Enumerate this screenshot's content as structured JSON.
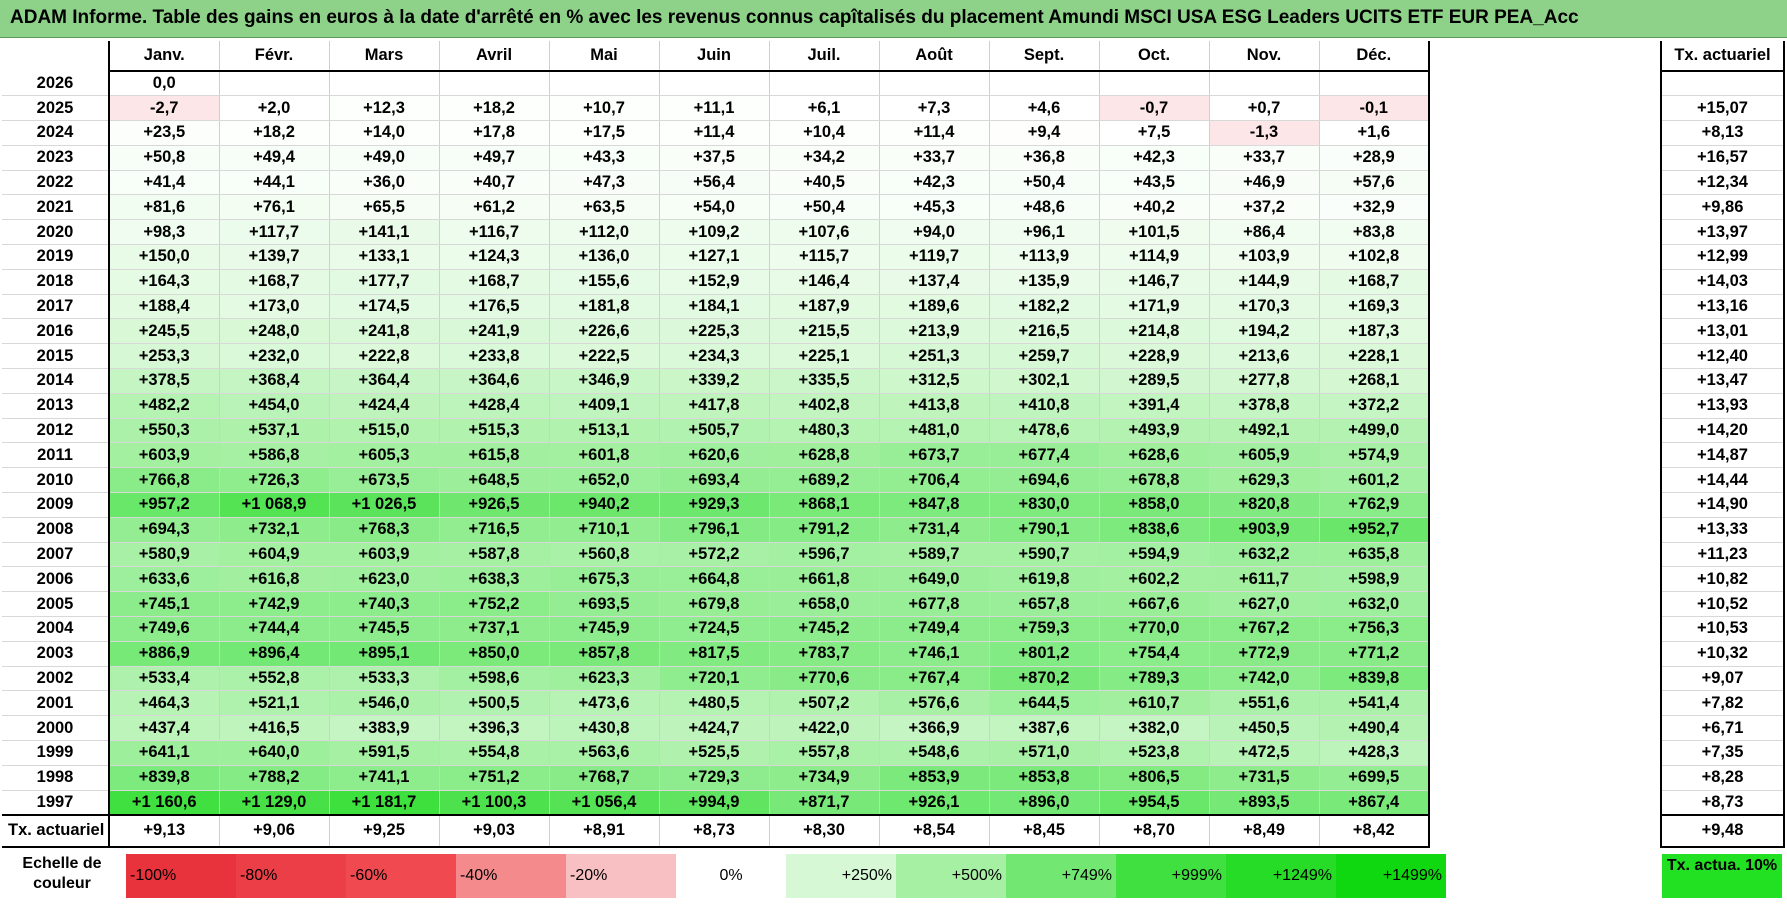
{
  "title": "ADAM Informe. Table des gains en euros à la date d'arrêté en % avec les revenus connus capîtalisés du placement Amundi MSCI USA ESG Leaders UCITS ETF EUR PEA_Acc",
  "months": [
    "Janv.",
    "Févr.",
    "Mars",
    "Avril",
    "Mai",
    "Juin",
    "Juil.",
    "Août",
    "Sept.",
    "Oct.",
    "Nov.",
    "Déc."
  ],
  "tx_header": "Tx. actuariel",
  "rows": [
    {
      "year": "2026",
      "values": [
        "0,0",
        "",
        "",
        "",
        "",
        "",
        "",
        "",
        "",
        "",
        "",
        ""
      ],
      "tx": ""
    },
    {
      "year": "2025",
      "values": [
        "-2,7",
        "+2,0",
        "+12,3",
        "+18,2",
        "+10,7",
        "+11,1",
        "+6,1",
        "+7,3",
        "+4,6",
        "-0,7",
        "+0,7",
        "-0,1"
      ],
      "tx": "+15,07"
    },
    {
      "year": "2024",
      "values": [
        "+23,5",
        "+18,2",
        "+14,0",
        "+17,8",
        "+17,5",
        "+11,4",
        "+10,4",
        "+11,4",
        "+9,4",
        "+7,5",
        "-1,3",
        "+1,6"
      ],
      "tx": "+8,13"
    },
    {
      "year": "2023",
      "values": [
        "+50,8",
        "+49,4",
        "+49,0",
        "+49,7",
        "+43,3",
        "+37,5",
        "+34,2",
        "+33,7",
        "+36,8",
        "+42,3",
        "+33,7",
        "+28,9"
      ],
      "tx": "+16,57"
    },
    {
      "year": "2022",
      "values": [
        "+41,4",
        "+44,1",
        "+36,0",
        "+40,7",
        "+47,3",
        "+56,4",
        "+40,5",
        "+42,3",
        "+50,4",
        "+43,5",
        "+46,9",
        "+57,6"
      ],
      "tx": "+12,34"
    },
    {
      "year": "2021",
      "values": [
        "+81,6",
        "+76,1",
        "+65,5",
        "+61,2",
        "+63,5",
        "+54,0",
        "+50,4",
        "+45,3",
        "+48,6",
        "+40,2",
        "+37,2",
        "+32,9"
      ],
      "tx": "+9,86"
    },
    {
      "year": "2020",
      "values": [
        "+98,3",
        "+117,7",
        "+141,1",
        "+116,7",
        "+112,0",
        "+109,2",
        "+107,6",
        "+94,0",
        "+96,1",
        "+101,5",
        "+86,4",
        "+83,8"
      ],
      "tx": "+13,97"
    },
    {
      "year": "2019",
      "values": [
        "+150,0",
        "+139,7",
        "+133,1",
        "+124,3",
        "+136,0",
        "+127,1",
        "+115,7",
        "+119,7",
        "+113,9",
        "+114,9",
        "+103,9",
        "+102,8"
      ],
      "tx": "+12,99"
    },
    {
      "year": "2018",
      "values": [
        "+164,3",
        "+168,7",
        "+177,7",
        "+168,7",
        "+155,6",
        "+152,9",
        "+146,4",
        "+137,4",
        "+135,9",
        "+146,7",
        "+144,9",
        "+168,7"
      ],
      "tx": "+14,03"
    },
    {
      "year": "2017",
      "values": [
        "+188,4",
        "+173,0",
        "+174,5",
        "+176,5",
        "+181,8",
        "+184,1",
        "+187,9",
        "+189,6",
        "+182,2",
        "+171,9",
        "+170,3",
        "+169,3"
      ],
      "tx": "+13,16"
    },
    {
      "year": "2016",
      "values": [
        "+245,5",
        "+248,0",
        "+241,8",
        "+241,9",
        "+226,6",
        "+225,3",
        "+215,5",
        "+213,9",
        "+216,5",
        "+214,8",
        "+194,2",
        "+187,3"
      ],
      "tx": "+13,01"
    },
    {
      "year": "2015",
      "values": [
        "+253,3",
        "+232,0",
        "+222,8",
        "+233,8",
        "+222,5",
        "+234,3",
        "+225,1",
        "+251,3",
        "+259,7",
        "+228,9",
        "+213,6",
        "+228,1"
      ],
      "tx": "+12,40"
    },
    {
      "year": "2014",
      "values": [
        "+378,5",
        "+368,4",
        "+364,4",
        "+364,6",
        "+346,9",
        "+339,2",
        "+335,5",
        "+312,5",
        "+302,1",
        "+289,5",
        "+277,8",
        "+268,1"
      ],
      "tx": "+13,47"
    },
    {
      "year": "2013",
      "values": [
        "+482,2",
        "+454,0",
        "+424,4",
        "+428,4",
        "+409,1",
        "+417,8",
        "+402,8",
        "+413,8",
        "+410,8",
        "+391,4",
        "+378,8",
        "+372,2"
      ],
      "tx": "+13,93"
    },
    {
      "year": "2012",
      "values": [
        "+550,3",
        "+537,1",
        "+515,0",
        "+515,3",
        "+513,1",
        "+505,7",
        "+480,3",
        "+481,0",
        "+478,6",
        "+493,9",
        "+492,1",
        "+499,0"
      ],
      "tx": "+14,20"
    },
    {
      "year": "2011",
      "values": [
        "+603,9",
        "+586,8",
        "+605,3",
        "+615,8",
        "+601,8",
        "+620,6",
        "+628,8",
        "+673,7",
        "+677,4",
        "+628,6",
        "+605,9",
        "+574,9"
      ],
      "tx": "+14,87"
    },
    {
      "year": "2010",
      "values": [
        "+766,8",
        "+726,3",
        "+673,5",
        "+648,5",
        "+652,0",
        "+693,4",
        "+689,2",
        "+706,4",
        "+694,6",
        "+678,8",
        "+629,3",
        "+601,2"
      ],
      "tx": "+14,44"
    },
    {
      "year": "2009",
      "values": [
        "+957,2",
        "+1 068,9",
        "+1 026,5",
        "+926,5",
        "+940,2",
        "+929,3",
        "+868,1",
        "+847,8",
        "+830,0",
        "+858,0",
        "+820,8",
        "+762,9"
      ],
      "tx": "+14,90"
    },
    {
      "year": "2008",
      "values": [
        "+694,3",
        "+732,1",
        "+768,3",
        "+716,5",
        "+710,1",
        "+796,1",
        "+791,2",
        "+731,4",
        "+790,1",
        "+838,6",
        "+903,9",
        "+952,7"
      ],
      "tx": "+13,33"
    },
    {
      "year": "2007",
      "values": [
        "+580,9",
        "+604,9",
        "+603,9",
        "+587,8",
        "+560,8",
        "+572,2",
        "+596,7",
        "+589,7",
        "+590,7",
        "+594,9",
        "+632,2",
        "+635,8"
      ],
      "tx": "+11,23"
    },
    {
      "year": "2006",
      "values": [
        "+633,6",
        "+616,8",
        "+623,0",
        "+638,3",
        "+675,3",
        "+664,8",
        "+661,8",
        "+649,0",
        "+619,8",
        "+602,2",
        "+611,7",
        "+598,9"
      ],
      "tx": "+10,82"
    },
    {
      "year": "2005",
      "values": [
        "+745,1",
        "+742,9",
        "+740,3",
        "+752,2",
        "+693,5",
        "+679,8",
        "+658,0",
        "+677,8",
        "+657,8",
        "+667,6",
        "+627,0",
        "+632,0"
      ],
      "tx": "+10,52"
    },
    {
      "year": "2004",
      "values": [
        "+749,6",
        "+744,4",
        "+745,5",
        "+737,1",
        "+745,9",
        "+724,5",
        "+745,2",
        "+749,4",
        "+759,3",
        "+770,0",
        "+767,2",
        "+756,3"
      ],
      "tx": "+10,53"
    },
    {
      "year": "2003",
      "values": [
        "+886,9",
        "+896,4",
        "+895,1",
        "+850,0",
        "+857,8",
        "+817,5",
        "+783,7",
        "+746,1",
        "+801,2",
        "+754,4",
        "+772,9",
        "+771,2"
      ],
      "tx": "+10,32"
    },
    {
      "year": "2002",
      "values": [
        "+533,4",
        "+552,8",
        "+533,3",
        "+598,6",
        "+623,3",
        "+720,1",
        "+770,6",
        "+767,4",
        "+870,2",
        "+789,3",
        "+742,0",
        "+839,8"
      ],
      "tx": "+9,07"
    },
    {
      "year": "2001",
      "values": [
        "+464,3",
        "+521,1",
        "+546,0",
        "+500,5",
        "+473,6",
        "+480,5",
        "+507,2",
        "+576,6",
        "+644,5",
        "+610,7",
        "+551,6",
        "+541,4"
      ],
      "tx": "+7,82"
    },
    {
      "year": "2000",
      "values": [
        "+437,4",
        "+416,5",
        "+383,9",
        "+396,3",
        "+430,8",
        "+424,7",
        "+422,0",
        "+366,9",
        "+387,6",
        "+382,0",
        "+450,5",
        "+490,4"
      ],
      "tx": "+6,71"
    },
    {
      "year": "1999",
      "values": [
        "+641,1",
        "+640,0",
        "+591,5",
        "+554,8",
        "+563,6",
        "+525,5",
        "+557,8",
        "+548,6",
        "+571,0",
        "+523,8",
        "+472,5",
        "+428,3"
      ],
      "tx": "+7,35"
    },
    {
      "year": "1998",
      "values": [
        "+839,8",
        "+788,2",
        "+741,1",
        "+751,2",
        "+768,7",
        "+729,3",
        "+734,9",
        "+853,9",
        "+853,8",
        "+806,5",
        "+731,5",
        "+699,5"
      ],
      "tx": "+8,28"
    },
    {
      "year": "1997",
      "values": [
        "+1 160,6",
        "+1 129,0",
        "+1 181,7",
        "+1 100,3",
        "+1 056,4",
        "+994,9",
        "+871,7",
        "+926,1",
        "+896,0",
        "+954,5",
        "+893,5",
        "+867,4"
      ],
      "tx": "+8,73"
    }
  ],
  "footer": {
    "label": "Tx. actuariel",
    "values": [
      "+9,13",
      "+9,06",
      "+9,25",
      "+9,03",
      "+8,91",
      "+8,73",
      "+8,30",
      "+8,54",
      "+8,45",
      "+8,70",
      "+8,49",
      "+8,42"
    ],
    "tx": "+9,48"
  },
  "legend": {
    "label": "Echelle de couleur",
    "swatches": [
      {
        "text": "-100%",
        "color": "#e8323c",
        "align": "l"
      },
      {
        "text": "-80%",
        "color": "#ec3e46",
        "align": "l"
      },
      {
        "text": "-60%",
        "color": "#f04a50",
        "align": "l"
      },
      {
        "text": "-40%",
        "color": "#f48a8c",
        "align": "l"
      },
      {
        "text": "-20%",
        "color": "#f8c0c2",
        "align": "l"
      },
      {
        "text": "0%",
        "color": "#ffffff",
        "align": "c"
      },
      {
        "text": "+250%",
        "color": "#d6f8d4",
        "align": "r"
      },
      {
        "text": "+500%",
        "color": "#a6f0a4",
        "align": "r"
      },
      {
        "text": "+749%",
        "color": "#72e872",
        "align": "r"
      },
      {
        "text": "+999%",
        "color": "#40e040",
        "align": "r"
      },
      {
        "text": "+1249%",
        "color": "#26dc26",
        "align": "r"
      },
      {
        "text": "+1499%",
        "color": "#10d810",
        "align": "r"
      }
    ],
    "tx_label": "Tx. actua. 10%",
    "tx_color": "#22e022"
  }
}
